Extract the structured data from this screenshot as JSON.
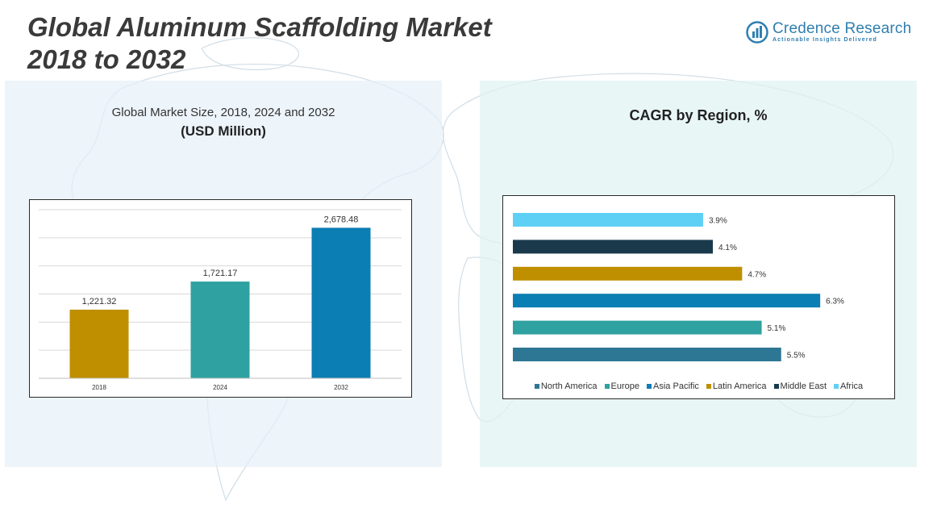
{
  "header": {
    "title_line1": "Global Aluminum Scaffolding Market",
    "title_line2": "2018 to 2032"
  },
  "brand": {
    "name": "Credence Research",
    "tagline": "Actionable Insights Delivered",
    "logo_icon": "bar-chart-circle-logo",
    "color": "#2f7fb0"
  },
  "left_panel": {
    "subtitle": "Global Market Size, 2018, 2024 and 2032",
    "unit": "(USD Million)"
  },
  "right_panel": {
    "title": "CAGR by Region, %"
  },
  "chart_data": [
    {
      "type": "bar",
      "title": "Global Market Size, 2018, 2024 and 2032",
      "ylabel": "(USD Million)",
      "categories": [
        "2018",
        "2024",
        "2032"
      ],
      "values": [
        1221.32,
        1721.17,
        2678.48
      ],
      "labels": [
        "1,221.32",
        "1,721.17",
        "2,678.48"
      ],
      "colors": [
        "#bf8f00",
        "#2ea1a0",
        "#0b7eb3"
      ],
      "ylim": [
        0,
        3000
      ],
      "grid": true,
      "legend": "none"
    },
    {
      "type": "bar",
      "orientation": "horizontal",
      "title": "CAGR by Region, %",
      "categories": [
        "Africa",
        "Middle East",
        "Latin America",
        "Asia Pacific",
        "Europe",
        "North America"
      ],
      "values": [
        3.9,
        4.1,
        4.7,
        6.3,
        5.1,
        5.5
      ],
      "labels": [
        "3.9%",
        "4.1%",
        "4.7%",
        "6.3%",
        "5.1%",
        "5.5%"
      ],
      "colors": [
        "#5fd0f5",
        "#1a3a4c",
        "#bf8f00",
        "#0b7eb3",
        "#2ea1a0",
        "#2e7794"
      ],
      "xlim": [
        0,
        7
      ],
      "grid": false,
      "legend": "bottom",
      "legend_entries": [
        {
          "name": "North America",
          "color": "#2e7794"
        },
        {
          "name": "Europe",
          "color": "#2ea1a0"
        },
        {
          "name": "Asia Pacific",
          "color": "#0b7eb3"
        },
        {
          "name": "Latin America",
          "color": "#bf8f00"
        },
        {
          "name": "Middle East",
          "color": "#1a3a4c"
        },
        {
          "name": "Africa",
          "color": "#5fd0f5"
        }
      ]
    }
  ]
}
